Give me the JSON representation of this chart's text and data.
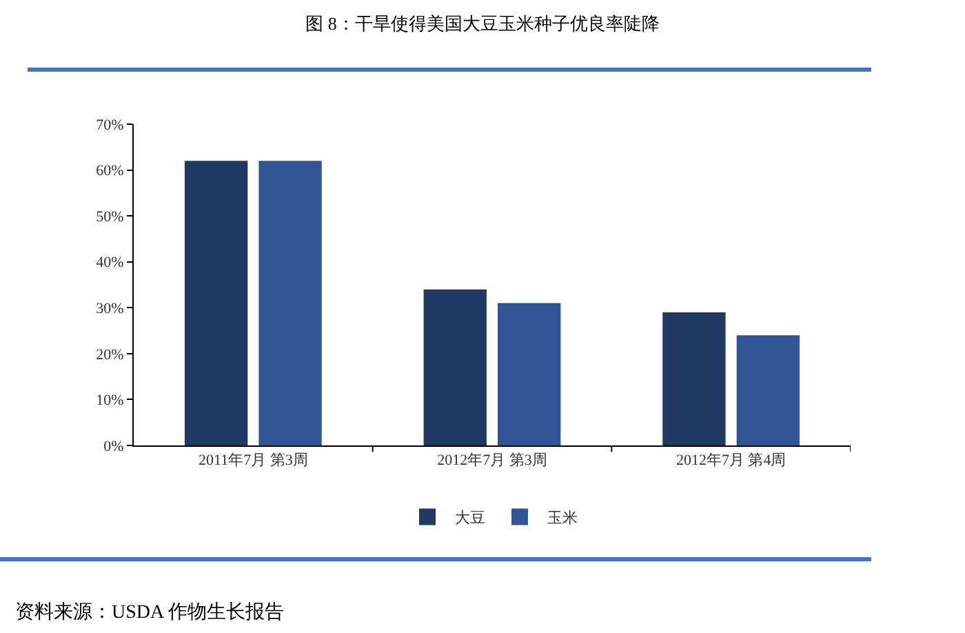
{
  "chart_data": {
    "type": "bar",
    "title": "图 8：干旱使得美国大豆玉米种子优良率陡降",
    "categories": [
      "2011年7月 第3周",
      "2012年7月 第3周",
      "2012年7月 第4周"
    ],
    "series": [
      {
        "name": "大豆",
        "color": "#1f3864",
        "values": [
          62,
          34,
          29
        ]
      },
      {
        "name": "玉米",
        "color": "#2f5597",
        "values": [
          62,
          31,
          24
        ]
      }
    ],
    "ylim": [
      0,
      70
    ],
    "yticks": [
      {
        "value": 0,
        "label": "0%"
      },
      {
        "value": 10,
        "label": "10%"
      },
      {
        "value": 20,
        "label": "20%"
      },
      {
        "value": 30,
        "label": "30%"
      },
      {
        "value": 40,
        "label": "40%"
      },
      {
        "value": 50,
        "label": "50%"
      },
      {
        "value": 60,
        "label": "60%"
      },
      {
        "value": 70,
        "label": "70%"
      }
    ],
    "grid": false,
    "legend": "bottom",
    "annotations": [
      "资料来源：USDA 作物生长报告"
    ]
  }
}
